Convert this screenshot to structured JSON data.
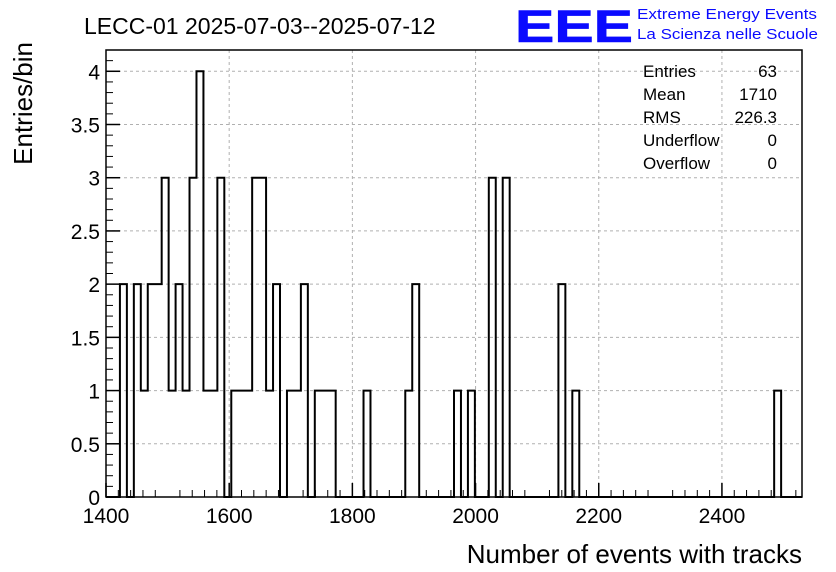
{
  "chart_data": {
    "type": "histogram",
    "title": "LECC-01 2025-07-03--2025-07-12",
    "xlabel": "Number of events with tracks",
    "ylabel": "Entries/bin",
    "xlim": [
      1400,
      2530
    ],
    "ylim": [
      0,
      4.2
    ],
    "x_ticks": [
      1400,
      1600,
      1800,
      2000,
      2200,
      2400
    ],
    "x_tick_labels": [
      "1400",
      "1600",
      "1800",
      "2000",
      "2200",
      "2400"
    ],
    "y_ticks": [
      0,
      0.5,
      1,
      1.5,
      2,
      2.5,
      3,
      3.5,
      4
    ],
    "y_tick_labels": [
      "0",
      "0.5",
      "1",
      "1.5",
      "2",
      "2.5",
      "3",
      "3.5",
      "4"
    ],
    "grid": true,
    "series": [
      {
        "bin_edges": [
          1400,
          1411.3,
          1422.6,
          1433.9,
          1445.2,
          1456.5,
          1467.8,
          1479.1,
          1490.4,
          1501.7,
          1513,
          1524.3,
          1535.6,
          1546.9,
          1558.2,
          1569.5,
          1580.8,
          1592.1,
          1603.4,
          1614.7,
          1626,
          1637.3,
          1648.6,
          1659.9,
          1671.2,
          1682.5,
          1693.8,
          1705.1,
          1716.4,
          1727.7,
          1739,
          1750.3,
          1761.6,
          1772.9,
          1784.2,
          1795.5,
          1806.8,
          1818.1,
          1829.4,
          1840.7,
          1852,
          1863.3,
          1874.6,
          1885.9,
          1897.2,
          1908.5,
          1919.8,
          1931.1,
          1942.4,
          1953.7,
          1965,
          1976.3,
          1987.6,
          1998.9,
          2010.2,
          2021.5,
          2032.8,
          2044.1,
          2055.4,
          2066.7,
          2078,
          2089.3,
          2100.6,
          2111.9,
          2123.2,
          2134.5,
          2145.8,
          2157.1,
          2168.4,
          2179.7,
          2191,
          2202.3,
          2213.6,
          2224.9,
          2236.2,
          2247.5,
          2258.8,
          2270.1,
          2281.4,
          2292.7,
          2304,
          2315.3,
          2326.6,
          2337.9,
          2349.2,
          2360.5,
          2371.8,
          2383.1,
          2394.4,
          2405.7,
          2417,
          2428.3,
          2439.6,
          2450.9,
          2462.2,
          2473.5,
          2484.8,
          2496.1,
          2507.4,
          2518.7,
          2530
        ],
        "counts": [
          0,
          0,
          2,
          0,
          2,
          1,
          2,
          2,
          3,
          1,
          2,
          1,
          3,
          4,
          1,
          1,
          3,
          0,
          1,
          1,
          1,
          3,
          3,
          1,
          2,
          0,
          1,
          1,
          2,
          0,
          1,
          1,
          1,
          0,
          0,
          0,
          0,
          1,
          0,
          0,
          0,
          0,
          0,
          1,
          2,
          0,
          0,
          0,
          0,
          0,
          1,
          0,
          1,
          0,
          0,
          3,
          0,
          3,
          0,
          0,
          0,
          0,
          0,
          0,
          0,
          2,
          0,
          1,
          0,
          0,
          0,
          0,
          0,
          0,
          0,
          0,
          0,
          0,
          0,
          0,
          0,
          0,
          0,
          0,
          0,
          0,
          0,
          0,
          0,
          0,
          0,
          0,
          0,
          0,
          0,
          0,
          1,
          0,
          0,
          0
        ]
      }
    ],
    "stats": [
      {
        "label": "Entries",
        "value": "63"
      },
      {
        "label": "Mean",
        "value": "1710"
      },
      {
        "label": "RMS",
        "value": "226.3"
      },
      {
        "label": "Underflow",
        "value": "0"
      },
      {
        "label": "Overflow",
        "value": "0"
      }
    ]
  },
  "logo": {
    "mark": "EEE",
    "line1": "Extreme Energy Events",
    "line2": "La Scienza nelle Scuole",
    "color": "#0a0aff"
  },
  "colors": {
    "histogram": "#000000",
    "grid": "#b0b0b0",
    "frame": "#000000"
  }
}
